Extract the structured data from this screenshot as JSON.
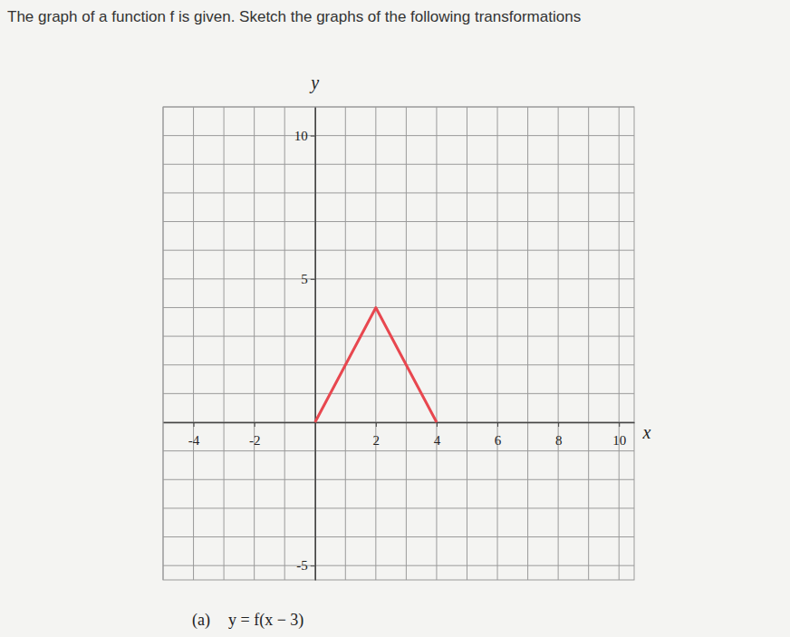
{
  "chart_data": {
    "type": "line",
    "title": "The graph of a function f is given. Sketch the graphs of the following transformations",
    "x_label": "x",
    "y_label": "y",
    "annotations": [
      "(a)",
      "y = f(x − 3)"
    ],
    "xlim": [
      -5,
      10.5
    ],
    "ylim": [
      -5.5,
      11
    ],
    "xticks": [
      -4,
      -2,
      2,
      4,
      6,
      8,
      10
    ],
    "yticks": [
      -5,
      5,
      10
    ],
    "grid": true,
    "series": [
      {
        "name": "f",
        "color": "#e8474f",
        "x": [
          0,
          2,
          4
        ],
        "values": [
          0,
          4,
          0
        ]
      }
    ]
  }
}
